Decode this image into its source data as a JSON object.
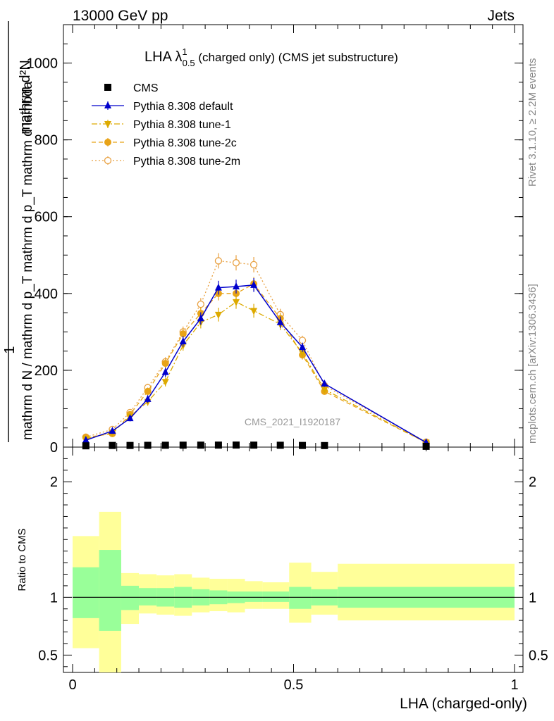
{
  "header": {
    "left": "13000 GeV pp",
    "right": "Jets"
  },
  "side_labels": {
    "rivet": "Rivet 3.1.10, ≥ 2.2M events",
    "mcplots": "mcplots.cern.ch [arXiv:1306.3436]"
  },
  "watermark": "CMS_2021_I1920187",
  "chart_data": [
    {
      "type": "line",
      "title": {
        "main": "LHA λ",
        "sup": "1",
        "sub": "0.5",
        "rest": " (charged only) (CMS jet substructure)"
      },
      "ylabel": {
        "numerator": "mathrm d²N",
        "denominator": "mathrm d N / mathrm d p_T mathrm d p_T mathrm d lambda",
        "one": "1"
      },
      "ylim": [
        0,
        1100
      ],
      "yticks": [
        0,
        200,
        400,
        600,
        800,
        1000
      ],
      "ytick_labels": [
        "0",
        "200",
        "400",
        "600",
        "800",
        "1000"
      ],
      "xlim": [
        -0.02,
        1.0
      ],
      "x": [
        0.03,
        0.09,
        0.13,
        0.17,
        0.21,
        0.25,
        0.29,
        0.33,
        0.37,
        0.41,
        0.47,
        0.52,
        0.57,
        0.8
      ],
      "xerr_edges": [
        0.0,
        0.06,
        0.11,
        0.15,
        0.19,
        0.23,
        0.27,
        0.31,
        0.35,
        0.39,
        0.43,
        0.49,
        0.54,
        0.6,
        1.0
      ],
      "series": [
        {
          "name": "CMS",
          "style": "data",
          "color": "#000000",
          "marker": "square",
          "values": [
            1.5,
            2.5,
            2.5,
            2.8,
            3.0,
            3.2,
            3.3,
            3.4,
            3.5,
            3.3,
            3.0,
            2.5,
            2.2,
            0.2
          ]
        },
        {
          "name": "Pythia 8.308 default",
          "style": "solid",
          "color": "#0000cc",
          "marker": "triangle-up",
          "values": [
            18,
            42,
            75,
            125,
            195,
            275,
            335,
            415,
            418,
            422,
            325,
            260,
            165,
            12
          ],
          "errors": [
            4,
            6,
            8,
            10,
            12,
            14,
            16,
            18,
            18,
            18,
            15,
            12,
            8,
            2
          ]
        },
        {
          "name": "Pythia 8.308 tune-1",
          "style": "dashdot",
          "color": "#ddaa00",
          "marker": "triangle-down",
          "values": [
            22,
            38,
            80,
            118,
            170,
            265,
            325,
            345,
            378,
            355,
            320,
            245,
            150,
            12
          ],
          "errors": [
            4,
            6,
            8,
            10,
            12,
            14,
            16,
            18,
            18,
            18,
            15,
            12,
            8,
            2
          ]
        },
        {
          "name": "Pythia 8.308 tune-2c",
          "style": "dashed",
          "color": "#e8a317",
          "marker": "circle",
          "values": [
            25,
            35,
            85,
            145,
            218,
            295,
            348,
            400,
            400,
            425,
            335,
            240,
            145,
            12
          ],
          "errors": [
            4,
            6,
            8,
            10,
            12,
            14,
            16,
            18,
            18,
            18,
            15,
            12,
            8,
            2
          ]
        },
        {
          "name": "Pythia 8.308 tune-2m",
          "style": "dotted",
          "color": "#e8a040",
          "marker": "open-circle",
          "values": [
            26,
            46,
            90,
            155,
            222,
            300,
            372,
            485,
            480,
            475,
            345,
            278,
            160,
            13
          ],
          "errors": [
            4,
            6,
            8,
            10,
            12,
            14,
            16,
            20,
            20,
            20,
            15,
            12,
            8,
            2
          ]
        }
      ],
      "legend_position": "top-left"
    },
    {
      "type": "area",
      "ylabel": "Ratio to CMS",
      "xlabel": "LHA (charged-only)",
      "ylim": [
        0.35,
        2.3
      ],
      "yticks": [
        0.5,
        1,
        2
      ],
      "ytick_labels": [
        "0.5",
        "1",
        "2"
      ],
      "xticks": [
        0,
        0.5,
        1
      ],
      "xtick_labels": [
        "0",
        "0.5",
        "1"
      ],
      "bands": {
        "edges": [
          0.0,
          0.06,
          0.11,
          0.15,
          0.19,
          0.23,
          0.27,
          0.31,
          0.35,
          0.39,
          0.43,
          0.49,
          0.54,
          0.6,
          1.0
        ],
        "green_low": [
          0.82,
          0.71,
          0.89,
          0.93,
          0.92,
          0.91,
          0.93,
          0.94,
          0.95,
          0.96,
          0.96,
          0.9,
          0.93,
          0.91
        ],
        "green_high": [
          1.26,
          1.41,
          1.1,
          1.08,
          1.08,
          1.09,
          1.07,
          1.06,
          1.05,
          1.05,
          1.05,
          1.09,
          1.07,
          1.09
        ],
        "yellow_low": [
          0.56,
          0.35,
          0.77,
          0.86,
          0.85,
          0.84,
          0.87,
          0.88,
          0.87,
          0.9,
          0.9,
          0.78,
          0.85,
          0.8
        ],
        "yellow_high": [
          1.53,
          1.74,
          1.21,
          1.2,
          1.19,
          1.2,
          1.17,
          1.16,
          1.16,
          1.14,
          1.13,
          1.3,
          1.22,
          1.29
        ]
      },
      "colors": {
        "green": "#99ff99",
        "yellow": "#ffff99"
      }
    }
  ]
}
